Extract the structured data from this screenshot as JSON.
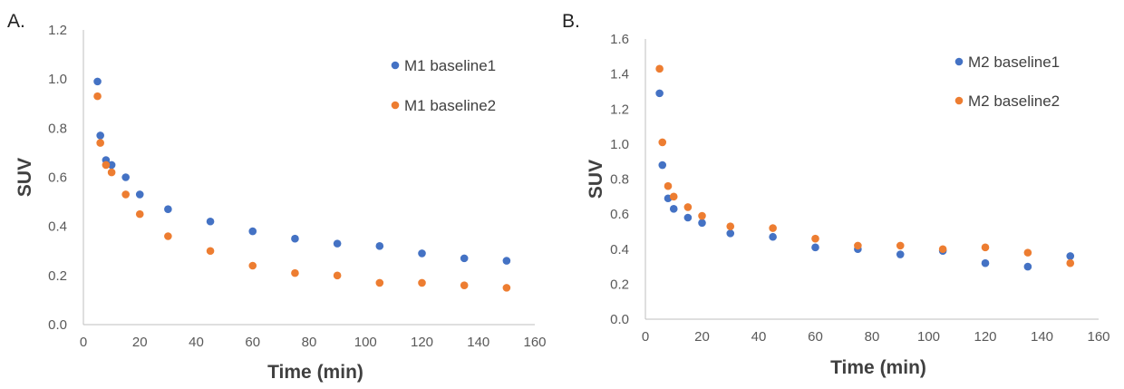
{
  "chart_data": [
    {
      "panel_label": "A.",
      "type": "scatter",
      "xlabel": "Time (min)",
      "ylabel": "SUV",
      "xlim": [
        0,
        160
      ],
      "ylim": [
        0.0,
        1.2
      ],
      "xticks": [
        "0",
        "20",
        "40",
        "60",
        "80",
        "100",
        "120",
        "140",
        "160"
      ],
      "yticks": [
        "0.0",
        "0.2",
        "0.4",
        "0.6",
        "0.8",
        "1.0",
        "1.2"
      ],
      "grid": false,
      "legend_position": "top-right",
      "series": [
        {
          "name": "M1 baseline1",
          "color": "#4472C4",
          "x": [
            5,
            6,
            8,
            10,
            15,
            20,
            30,
            45,
            60,
            75,
            90,
            105,
            120,
            135,
            150
          ],
          "y": [
            0.99,
            0.77,
            0.67,
            0.65,
            0.6,
            0.53,
            0.47,
            0.42,
            0.38,
            0.35,
            0.33,
            0.32,
            0.29,
            0.27,
            0.26
          ]
        },
        {
          "name": "M1 baseline2",
          "color": "#ED7D31",
          "x": [
            5,
            6,
            8,
            10,
            15,
            20,
            30,
            45,
            60,
            75,
            90,
            105,
            120,
            135,
            150
          ],
          "y": [
            0.93,
            0.74,
            0.65,
            0.62,
            0.53,
            0.45,
            0.36,
            0.3,
            0.24,
            0.21,
            0.2,
            0.17,
            0.17,
            0.16,
            0.15
          ]
        }
      ]
    },
    {
      "panel_label": "B.",
      "type": "scatter",
      "xlabel": "Time (min)",
      "ylabel": "SUV",
      "xlim": [
        0,
        160
      ],
      "ylim": [
        0.0,
        1.6
      ],
      "xticks": [
        "0",
        "20",
        "40",
        "60",
        "80",
        "100",
        "120",
        "140",
        "160"
      ],
      "yticks": [
        "0.0",
        "0.2",
        "0.4",
        "0.6",
        "0.8",
        "1.0",
        "1.2",
        "1.4",
        "1.6"
      ],
      "grid": false,
      "legend_position": "top-right",
      "series": [
        {
          "name": "M2 baseline1",
          "color": "#4472C4",
          "x": [
            5,
            6,
            8,
            10,
            15,
            20,
            30,
            45,
            60,
            75,
            90,
            105,
            120,
            135,
            150
          ],
          "y": [
            1.29,
            0.88,
            0.69,
            0.63,
            0.58,
            0.55,
            0.49,
            0.47,
            0.41,
            0.4,
            0.37,
            0.39,
            0.32,
            0.3,
            0.36
          ]
        },
        {
          "name": "M2 baseline2",
          "color": "#ED7D31",
          "x": [
            5,
            6,
            8,
            10,
            15,
            20,
            30,
            45,
            60,
            75,
            90,
            105,
            120,
            135,
            150
          ],
          "y": [
            1.43,
            1.01,
            0.76,
            0.7,
            0.64,
            0.59,
            0.53,
            0.52,
            0.46,
            0.42,
            0.42,
            0.4,
            0.41,
            0.38,
            0.32
          ]
        }
      ]
    }
  ]
}
